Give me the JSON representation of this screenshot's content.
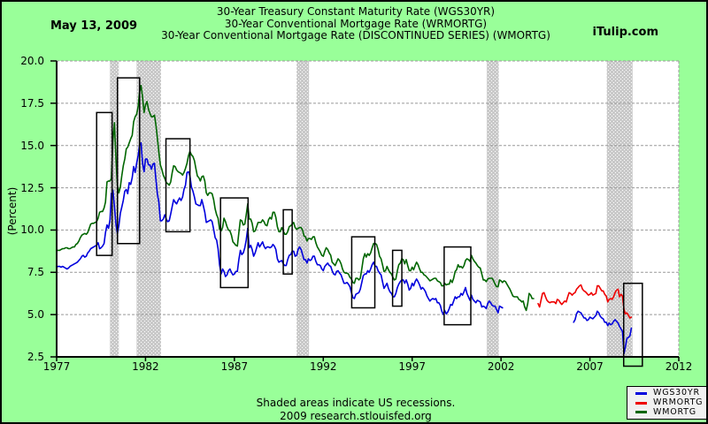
{
  "header": {
    "date": "May 13, 2009",
    "site": "iTulip.com"
  },
  "footer": {
    "note": "Shaded areas indicate US recessions.",
    "credit": "2009 research.stlouisfed.org"
  },
  "chart_data": {
    "type": "line",
    "title_lines": [
      "30-Year Treasury Constant Maturity Rate (WGS30YR)",
      "30-Year Conventional Mortgage Rate (WRMORTG)",
      "30-Year Conventional Mortgage Rate (DISCONTINUED SERIES) (WMORTG)"
    ],
    "ylabel": "(Percent)",
    "xlabel": "",
    "xlim": [
      1977,
      2012
    ],
    "ylim": [
      2.5,
      20.0
    ],
    "xticks": [
      1977,
      1982,
      1987,
      1992,
      1997,
      2002,
      2007,
      2012
    ],
    "yticks": [
      2.5,
      5.0,
      7.5,
      10.0,
      12.5,
      15.0,
      17.5,
      20.0
    ],
    "grid": "horizontal-dashed",
    "legend_position": "bottom-right-outside",
    "colors": {
      "background": "#99ff99",
      "plot_background": "#ffffff",
      "recession_band": "#c9c9c9",
      "gridline": "#999999",
      "axis": "#000000",
      "annotation_box": "#000000"
    },
    "recessions": [
      [
        1980.0,
        1980.5
      ],
      [
        1981.5,
        1982.87
      ],
      [
        1990.5,
        1991.2
      ],
      [
        2001.2,
        2001.87
      ],
      [
        2007.95,
        2009.4
      ]
    ],
    "annotation_boxes": [
      {
        "x0": 1979.25,
        "x1": 1980.12,
        "y0": 8.5,
        "y1": 16.95
      },
      {
        "x0": 1980.42,
        "x1": 1981.67,
        "y0": 9.2,
        "y1": 19.0
      },
      {
        "x0": 1983.15,
        "x1": 1984.5,
        "y0": 9.9,
        "y1": 15.4
      },
      {
        "x0": 1986.22,
        "x1": 1987.77,
        "y0": 6.6,
        "y1": 11.9
      },
      {
        "x0": 1989.75,
        "x1": 1990.25,
        "y0": 7.4,
        "y1": 11.2
      },
      {
        "x0": 1993.6,
        "x1": 1994.9,
        "y0": 5.4,
        "y1": 9.6
      },
      {
        "x0": 1995.9,
        "x1": 1996.42,
        "y0": 5.5,
        "y1": 8.8
      },
      {
        "x0": 1998.8,
        "x1": 2000.3,
        "y0": 4.4,
        "y1": 9.0
      },
      {
        "x0": 2008.9,
        "x1": 2009.95,
        "y0": 1.95,
        "y1": 6.85
      }
    ],
    "series": [
      {
        "name": "WGS30YR",
        "color": "#0000dd",
        "segments": [
          {
            "x0": 1977.0,
            "dx": 0.0833333,
            "values": [
              7.8,
              7.85,
              7.85,
              7.8,
              7.85,
              7.8,
              7.75,
              7.7,
              7.75,
              7.85,
              7.9,
              7.95,
              8.0,
              8.05,
              8.1,
              8.2,
              8.3,
              8.45,
              8.5,
              8.4,
              8.45,
              8.65,
              8.75,
              8.9,
              8.95,
              9.0,
              9.05,
              9.1,
              9.25,
              8.9,
              8.95,
              9.05,
              9.2,
              9.85,
              10.3,
              10.1,
              10.6,
              12.15,
              12.35,
              11.4,
              10.35,
              9.8,
              10.25,
              11.0,
              11.35,
              11.75,
              12.3,
              12.4,
              12.15,
              12.8,
              12.7,
              13.1,
              13.75,
              13.4,
              13.95,
              14.4,
              15.0,
              15.15,
              13.95,
              13.45,
              14.2,
              14.2,
              13.85,
              13.85,
              13.6,
              13.9,
              13.95,
              13.05,
              12.15,
              11.65,
              10.55,
              10.55,
              10.65,
              10.9,
              10.65,
              10.5,
              10.55,
              10.95,
              11.4,
              11.8,
              11.65,
              11.55,
              11.75,
              11.9,
              11.75,
              11.95,
              12.4,
              12.65,
              13.4,
              13.45,
              13.2,
              12.55,
              12.3,
              11.95,
              11.55,
              11.5,
              11.45,
              11.45,
              11.8,
              11.45,
              11.05,
              10.45,
              10.5,
              10.55,
              10.6,
              10.5,
              10.05,
              9.55,
              9.4,
              8.9,
              7.95,
              7.4,
              7.7,
              7.55,
              7.25,
              7.35,
              7.6,
              7.7,
              7.5,
              7.35,
              7.4,
              7.55,
              7.55,
              8.25,
              8.8,
              8.55,
              8.65,
              8.95,
              9.4,
              10.1,
              8.95,
              9.1,
              8.85,
              8.45,
              8.65,
              8.95,
              9.25,
              9.0,
              9.15,
              9.3,
              9.05,
              8.9,
              9.0,
              9.0,
              8.95,
              9.0,
              9.15,
              9.05,
              8.85,
              8.3,
              8.1,
              8.15,
              8.2,
              8.0,
              7.9,
              7.9,
              8.25,
              8.5,
              8.55,
              8.75,
              8.75,
              8.45,
              8.5,
              8.85,
              9.0,
              8.85,
              8.55,
              8.25,
              8.25,
              8.05,
              8.3,
              8.2,
              8.25,
              8.45,
              8.45,
              8.15,
              7.95,
              7.95,
              7.9,
              7.7,
              7.6,
              7.85,
              7.95,
              8.05,
              7.9,
              7.85,
              7.6,
              7.4,
              7.35,
              7.55,
              7.6,
              7.45,
              7.35,
              7.1,
              6.85,
              6.85,
              6.9,
              6.8,
              6.65,
              6.3,
              6.0,
              5.95,
              6.2,
              6.25,
              6.3,
              6.5,
              6.9,
              7.3,
              7.4,
              7.4,
              7.6,
              7.5,
              7.7,
              7.95,
              8.1,
              7.85,
              7.85,
              7.6,
              7.45,
              7.35,
              6.95,
              6.55,
              6.7,
              6.85,
              6.55,
              6.35,
              6.25,
              6.05,
              6.05,
              6.25,
              6.6,
              6.8,
              6.95,
              7.05,
              7.05,
              6.85,
              7.05,
              6.8,
              6.45,
              6.55,
              6.85,
              6.7,
              6.95,
              7.1,
              6.95,
              6.75,
              6.5,
              6.6,
              6.5,
              6.35,
              6.1,
              5.95,
              5.8,
              5.9,
              5.95,
              5.9,
              5.95,
              5.7,
              5.7,
              5.55,
              5.2,
              5.0,
              5.25,
              5.05,
              5.15,
              5.35,
              5.6,
              5.55,
              5.8,
              6.05,
              5.95,
              6.05,
              6.05,
              6.25,
              6.15,
              6.35,
              6.6,
              6.25,
              6.05,
              5.85,
              6.15,
              5.9,
              5.8,
              5.7,
              5.85,
              5.8,
              5.75,
              5.45,
              5.5,
              5.45,
              5.35,
              5.65,
              5.8,
              5.7,
              5.55,
              5.5,
              5.5,
              5.3,
              5.1,
              5.5,
              5.45,
              5.4
            ]
          },
          {
            "x0": 2006.083,
            "dx": 0.0833333,
            "values": [
              4.55,
              4.7,
              5.05,
              5.2,
              5.15,
              5.1,
              4.95,
              4.8,
              4.8,
              4.65,
              4.7,
              4.85,
              4.8,
              4.75,
              4.85,
              4.95,
              5.2,
              5.1,
              4.9,
              4.8,
              4.75,
              4.55,
              4.55,
              4.35,
              4.5,
              4.4,
              4.45,
              4.6,
              4.7,
              4.6,
              4.5,
              4.3,
              4.15,
              4.0,
              2.7,
              3.1,
              3.6,
              3.65,
              3.75,
              4.2
            ]
          }
        ]
      },
      {
        "name": "WRMORTG",
        "color": "#ee0000",
        "segments": [
          {
            "x0": 2004.083,
            "dx": 0.0833333,
            "values": [
              5.65,
              5.45,
              5.85,
              6.25,
              6.3,
              6.05,
              5.85,
              5.75,
              5.7,
              5.75,
              5.75,
              5.75,
              5.65,
              5.9,
              5.85,
              5.7,
              5.6,
              5.7,
              5.8,
              5.75,
              6.05,
              6.3,
              6.25,
              6.15,
              6.25,
              6.3,
              6.5,
              6.6,
              6.7,
              6.75,
              6.5,
              6.4,
              6.35,
              6.25,
              6.15,
              6.2,
              6.3,
              6.15,
              6.2,
              6.25,
              6.7,
              6.7,
              6.55,
              6.4,
              6.4,
              6.2,
              6.1,
              5.75,
              5.9,
              5.95,
              5.9,
              6.05,
              6.3,
              6.45,
              6.5,
              6.05,
              6.2,
              6.1,
              5.3,
              5.05,
              5.1,
              4.95,
              4.8,
              4.85
            ]
          }
        ]
      },
      {
        "name": "WMORTG",
        "color": "#006600",
        "segments": [
          {
            "x0": 1977.0,
            "dx": 0.0833333,
            "values": [
              8.8,
              8.8,
              8.8,
              8.85,
              8.9,
              8.9,
              8.95,
              8.95,
              8.9,
              8.9,
              8.95,
              9.0,
              9.0,
              9.15,
              9.2,
              9.35,
              9.55,
              9.7,
              9.75,
              9.8,
              9.75,
              9.85,
              10.1,
              10.35,
              10.4,
              10.4,
              10.45,
              10.5,
              10.7,
              11.05,
              11.1,
              11.1,
              11.3,
              11.65,
              12.85,
              12.9,
              12.9,
              13.05,
              15.3,
              16.35,
              14.25,
              12.7,
              12.2,
              12.55,
              13.2,
              13.8,
              14.2,
              14.8,
              14.9,
              15.15,
              15.4,
              15.6,
              16.4,
              16.7,
              16.85,
              17.3,
              18.15,
              18.55,
              17.85,
              16.95,
              17.4,
              17.6,
              17.15,
              16.9,
              16.7,
              16.7,
              16.8,
              16.25,
              15.45,
              14.6,
              13.85,
              13.6,
              13.25,
              13.05,
              12.8,
              12.75,
              12.65,
              12.85,
              13.4,
              13.8,
              13.75,
              13.55,
              13.45,
              13.4,
              13.35,
              13.25,
              13.4,
              13.65,
              13.95,
              14.4,
              14.65,
              14.45,
              14.35,
              14.1,
              13.65,
              13.2,
              13.1,
              12.9,
              13.15,
              13.2,
              12.9,
              12.2,
              12.05,
              12.2,
              12.2,
              12.15,
              11.8,
              11.25,
              10.9,
              10.7,
              10.05,
              9.95,
              10.15,
              10.7,
              10.5,
              10.2,
              10.0,
              9.95,
              9.7,
              9.3,
              9.2,
              9.1,
              9.05,
              9.85,
              10.6,
              10.55,
              10.3,
              10.35,
              10.9,
              11.55,
              10.65,
              10.65,
              10.4,
              9.9,
              9.95,
              10.2,
              10.45,
              10.45,
              10.45,
              10.6,
              10.5,
              10.3,
              10.25,
              10.6,
              10.75,
              10.65,
              11.05,
              11.05,
              10.75,
              10.2,
              9.9,
              9.9,
              10.15,
              9.95,
              9.75,
              9.75,
              9.9,
              10.2,
              10.25,
              10.35,
              10.45,
              10.15,
              10.05,
              10.1,
              10.15,
              10.15,
              10.0,
              9.65,
              9.6,
              9.35,
              9.5,
              9.5,
              9.45,
              9.6,
              9.6,
              9.25,
              9.0,
              8.85,
              8.7,
              8.5,
              8.45,
              8.75,
              8.95,
              8.85,
              8.65,
              8.5,
              8.1,
              8.0,
              7.9,
              8.1,
              8.3,
              8.2,
              8.0,
              7.7,
              7.5,
              7.45,
              7.45,
              7.4,
              7.2,
              7.1,
              6.9,
              6.85,
              7.15,
              7.15,
              7.05,
              7.15,
              7.7,
              8.3,
              8.6,
              8.4,
              8.6,
              8.5,
              8.65,
              8.95,
              9.2,
              9.2,
              9.15,
              8.85,
              8.45,
              8.3,
              7.95,
              7.55,
              7.6,
              7.85,
              7.65,
              7.5,
              7.4,
              7.2,
              7.05,
              7.1,
              7.6,
              7.95,
              8.05,
              8.3,
              8.25,
              8.0,
              8.25,
              7.9,
              7.6,
              7.6,
              7.8,
              7.65,
              7.9,
              8.1,
              7.95,
              7.7,
              7.5,
              7.5,
              7.35,
              7.3,
              7.2,
              7.1,
              7.0,
              7.05,
              7.1,
              7.15,
              7.15,
              7.0,
              6.95,
              6.9,
              6.7,
              6.7,
              6.85,
              6.75,
              6.8,
              6.8,
              7.05,
              6.9,
              7.15,
              7.55,
              7.65,
              7.95,
              7.8,
              7.85,
              7.75,
              7.9,
              8.2,
              8.3,
              8.25,
              8.15,
              8.5,
              8.3,
              8.15,
              8.05,
              7.9,
              7.8,
              7.75,
              7.4,
              7.05,
              7.05,
              6.95,
              7.1,
              7.15,
              7.15,
              7.15,
              7.0,
              6.8,
              6.65,
              6.65,
              7.05,
              7.0,
              6.9,
              7.0,
              6.95,
              6.8,
              6.65,
              6.5,
              6.3,
              6.1,
              6.05,
              6.05,
              6.05,
              5.9,
              5.85,
              5.75,
              5.8,
              5.45,
              5.25,
              5.65,
              6.25,
              6.15,
              5.95,
              5.95
            ]
          }
        ]
      }
    ]
  }
}
